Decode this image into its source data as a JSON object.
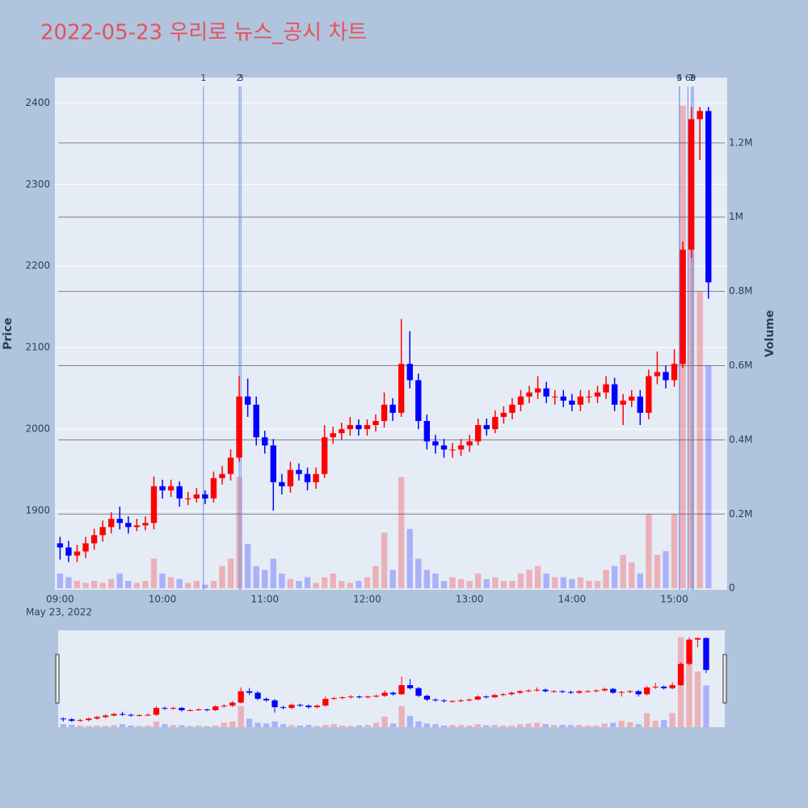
{
  "chart_data": {
    "type": "candlestick",
    "title": "2022-05-23 우리로 뉴스_공시 차트",
    "ylabel": "Price",
    "y2label": "Volume",
    "x_date_label": "May 23, 2022",
    "increasing_color": "#ff0000",
    "decreasing_color": "#0000ff",
    "news_color": "#6f8fe8",
    "grid": true,
    "rangeslider": true,
    "xlim": [
      "08:57",
      "15:31"
    ],
    "xticks": [
      "09:00",
      "10:00",
      "11:00",
      "12:00",
      "13:00",
      "14:00",
      "15:00"
    ],
    "ylim": [
      1803,
      2431
    ],
    "yticks": [
      1900,
      2000,
      2100,
      2200,
      2300,
      2400
    ],
    "y2lim": [
      -4000,
      1376000
    ],
    "y2ticks": [
      0,
      {
        "value": 200000,
        "label": "0.2M"
      },
      {
        "value": 400000,
        "label": "0.4M"
      },
      {
        "value": 600000,
        "label": "0.6M"
      },
      {
        "value": 800000,
        "label": "0.8M"
      },
      {
        "value": 1000000,
        "label": "1M"
      },
      {
        "value": 1200000,
        "label": "1.2M"
      }
    ],
    "x": [
      "09:00",
      "09:05",
      "09:10",
      "09:15",
      "09:20",
      "09:25",
      "09:30",
      "09:35",
      "09:40",
      "09:45",
      "09:50",
      "09:55",
      "10:00",
      "10:05",
      "10:10",
      "10:15",
      "10:20",
      "10:25",
      "10:30",
      "10:35",
      "10:40",
      "10:45",
      "10:50",
      "10:55",
      "11:00",
      "11:05",
      "11:10",
      "11:15",
      "11:20",
      "11:25",
      "11:30",
      "11:35",
      "11:40",
      "11:45",
      "11:50",
      "11:55",
      "12:00",
      "12:05",
      "12:10",
      "12:15",
      "12:20",
      "12:25",
      "12:30",
      "12:35",
      "12:40",
      "12:45",
      "12:50",
      "12:55",
      "13:00",
      "13:05",
      "13:10",
      "13:15",
      "13:20",
      "13:25",
      "13:30",
      "13:35",
      "13:40",
      "13:45",
      "13:50",
      "13:55",
      "14:00",
      "14:05",
      "14:10",
      "14:15",
      "14:20",
      "14:25",
      "14:30",
      "14:35",
      "14:40",
      "14:45",
      "14:50",
      "14:55",
      "15:00",
      "15:05",
      "15:10",
      "15:15",
      "15:20"
    ],
    "open": [
      1860,
      1855,
      1845,
      1850,
      1860,
      1870,
      1880,
      1890,
      1885,
      1880,
      1882,
      1885,
      1930,
      1925,
      1930,
      1915,
      1915,
      1920,
      1915,
      1940,
      1945,
      1965,
      2040,
      2030,
      1990,
      1980,
      1935,
      1930,
      1950,
      1945,
      1935,
      1945,
      1990,
      1995,
      2000,
      2005,
      2000,
      2005,
      2010,
      2030,
      2020,
      2080,
      2060,
      2010,
      1985,
      1980,
      1975,
      1975,
      1980,
      1985,
      2005,
      2000,
      2015,
      2020,
      2030,
      2040,
      2045,
      2050,
      2040,
      2040,
      2035,
      2030,
      2040,
      2040,
      2045,
      2055,
      2030,
      2035,
      2040,
      2020,
      2065,
      2070,
      2060,
      2080,
      2220,
      2380,
      2390
    ],
    "high": [
      1868,
      1863,
      1858,
      1868,
      1878,
      1888,
      1898,
      1905,
      1893,
      1890,
      1893,
      1942,
      1938,
      1938,
      1936,
      1923,
      1928,
      1925,
      1948,
      1955,
      1975,
      2065,
      2062,
      2040,
      1998,
      1988,
      1945,
      1960,
      1958,
      1953,
      1953,
      2005,
      2003,
      2008,
      2015,
      2012,
      2012,
      2018,
      2045,
      2038,
      2135,
      2120,
      2068,
      2018,
      1993,
      1988,
      1983,
      1988,
      1993,
      2013,
      2013,
      2023,
      2028,
      2038,
      2048,
      2053,
      2065,
      2058,
      2048,
      2048,
      2043,
      2048,
      2048,
      2053,
      2065,
      2063,
      2043,
      2048,
      2048,
      2073,
      2095,
      2078,
      2098,
      2230,
      2395,
      2395,
      2395
    ],
    "low": [
      1840,
      1837,
      1837,
      1842,
      1852,
      1862,
      1872,
      1877,
      1872,
      1875,
      1876,
      1877,
      1915,
      1917,
      1905,
      1907,
      1910,
      1908,
      1910,
      1932,
      1937,
      1960,
      2015,
      1980,
      1970,
      1900,
      1920,
      1922,
      1937,
      1925,
      1927,
      1940,
      1982,
      1987,
      1992,
      1992,
      1992,
      1997,
      2002,
      2010,
      2015,
      2050,
      2000,
      1975,
      1970,
      1965,
      1965,
      1967,
      1972,
      1980,
      1992,
      1995,
      2007,
      2012,
      2022,
      2032,
      2037,
      2032,
      2030,
      2027,
      2022,
      2022,
      2032,
      2032,
      2037,
      2022,
      2005,
      2027,
      2005,
      2012,
      2055,
      2050,
      2052,
      2075,
      2210,
      2330,
      2160
    ],
    "close": [
      1855,
      1845,
      1850,
      1860,
      1870,
      1880,
      1890,
      1885,
      1880,
      1882,
      1885,
      1930,
      1925,
      1930,
      1915,
      1915,
      1920,
      1915,
      1940,
      1945,
      1965,
      2040,
      2030,
      1990,
      1980,
      1935,
      1930,
      1950,
      1945,
      1935,
      1945,
      1990,
      1995,
      2000,
      2005,
      2000,
      2005,
      2010,
      2030,
      2020,
      2080,
      2060,
      2010,
      1985,
      1980,
      1975,
      1975,
      1980,
      1985,
      2005,
      2000,
      2015,
      2020,
      2030,
      2040,
      2045,
      2050,
      2040,
      2040,
      2035,
      2030,
      2040,
      2040,
      2045,
      2055,
      2030,
      2035,
      2040,
      2020,
      2065,
      2070,
      2060,
      2080,
      2220,
      2380,
      2390,
      2180
    ],
    "volume": [
      40000,
      30000,
      20000,
      15000,
      20000,
      15000,
      25000,
      40000,
      20000,
      15000,
      20000,
      80000,
      40000,
      30000,
      25000,
      15000,
      20000,
      10000,
      20000,
      60000,
      80000,
      300000,
      120000,
      60000,
      50000,
      80000,
      40000,
      25000,
      20000,
      30000,
      15000,
      30000,
      40000,
      20000,
      15000,
      20000,
      30000,
      60000,
      150000,
      50000,
      300000,
      160000,
      80000,
      50000,
      40000,
      20000,
      30000,
      25000,
      20000,
      40000,
      25000,
      30000,
      20000,
      20000,
      40000,
      50000,
      60000,
      40000,
      30000,
      30000,
      25000,
      30000,
      20000,
      20000,
      50000,
      60000,
      90000,
      70000,
      40000,
      200000,
      90000,
      100000,
      200000,
      1300000,
      1200000,
      800000,
      600000
    ],
    "annotations": [
      {
        "x": "10:24",
        "label": "1"
      },
      {
        "x": "10:45",
        "label": "2"
      },
      {
        "x": "10:46",
        "label": "3"
      },
      {
        "x": "15:03",
        "label": "4"
      },
      {
        "x": "15:03",
        "label": "5"
      },
      {
        "x": "15:08",
        "label": "6"
      },
      {
        "x": "15:10",
        "label": "7"
      },
      {
        "x": "15:11",
        "label": "8"
      },
      {
        "x": "15:11",
        "label": "9"
      }
    ]
  }
}
